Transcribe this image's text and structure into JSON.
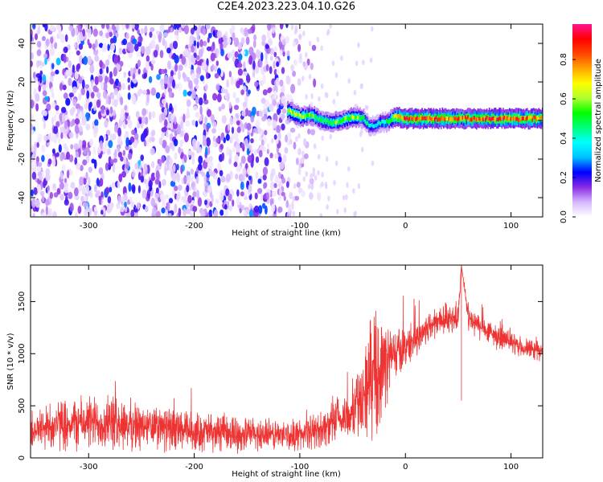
{
  "title": "C2E4.2023.223.04.10.G26",
  "chart_data": [
    {
      "type": "heatmap",
      "xlabel": "Height of straight line (km)",
      "ylabel": "Frequency (Hz)",
      "xlim": [
        -355,
        130
      ],
      "ylim": [
        -50,
        50
      ],
      "xticks": [
        -300,
        -200,
        -100,
        0,
        100
      ],
      "yticks": [
        -40,
        -20,
        0,
        20,
        40
      ],
      "colorbar": {
        "label": "Normalized spectral amplitude",
        "range": [
          0.0,
          0.98
        ],
        "ticks": [
          0.0,
          0.2,
          0.4,
          0.6,
          0.8
        ],
        "colors": [
          "#ffffff",
          "#d6b8ff",
          "#8a2be2",
          "#0000ff",
          "#00bfff",
          "#00ffff",
          "#00ff7f",
          "#00ff00",
          "#adff2f",
          "#ffff00",
          "#ffa500",
          "#ff4500",
          "#ff0000",
          "#ff1493"
        ]
      },
      "noise_band": {
        "x": [
          -355,
          -110
        ],
        "freq": [
          -50,
          50
        ],
        "amplitude": 0.15
      },
      "ridge": {
        "x": [
          -112,
          -100,
          -90,
          -80,
          -70,
          -60,
          -50,
          -40,
          -35,
          -30,
          -25,
          -20,
          -15,
          -10,
          0,
          20,
          40,
          60,
          80,
          100,
          130
        ],
        "frequency": [
          5,
          2,
          3,
          0,
          -1,
          0,
          2,
          1,
          -3,
          -3,
          -1,
          -1,
          0,
          2,
          1,
          1,
          1,
          1,
          1,
          1,
          1
        ],
        "amplitude": [
          0.6,
          0.6,
          0.55,
          0.5,
          0.55,
          0.55,
          0.6,
          0.5,
          0.4,
          0.35,
          0.4,
          0.45,
          0.5,
          0.8,
          0.85,
          0.85,
          0.8,
          0.8,
          0.85,
          0.85,
          0.8
        ]
      },
      "grid": false
    },
    {
      "type": "line",
      "xlabel": "Height of straight line (km)",
      "ylabel": "SNR (10 * v/v)",
      "xlim": [
        -355,
        130
      ],
      "ylim": [
        0,
        1850
      ],
      "xticks": [
        -300,
        -200,
        -100,
        0,
        100
      ],
      "yticks": [
        0,
        500,
        1000,
        1500
      ],
      "series": [
        {
          "color": "#ee3333",
          "x": [
            -355,
            -330,
            -300,
            -270,
            -250,
            -200,
            -150,
            -110,
            -90,
            -70,
            -55,
            -40,
            -35,
            -30,
            -25,
            -20,
            -10,
            0,
            10,
            20,
            30,
            40,
            50,
            53,
            60,
            70,
            80,
            90,
            100,
            110,
            120,
            130
          ],
          "mean": [
            260,
            320,
            340,
            330,
            300,
            250,
            230,
            215,
            240,
            320,
            400,
            580,
            750,
            800,
            850,
            900,
            1000,
            1060,
            1150,
            1240,
            1310,
            1350,
            1330,
            1850,
            1320,
            1260,
            1200,
            1150,
            1100,
            1060,
            1040,
            1020
          ],
          "spread": [
            230,
            280,
            300,
            300,
            260,
            220,
            190,
            170,
            180,
            230,
            280,
            420,
            650,
            700,
            650,
            500,
            300,
            230,
            200,
            180,
            180,
            180,
            180,
            0,
            170,
            150,
            140,
            130,
            120,
            110,
            110,
            110
          ]
        }
      ],
      "grid": false
    }
  ]
}
